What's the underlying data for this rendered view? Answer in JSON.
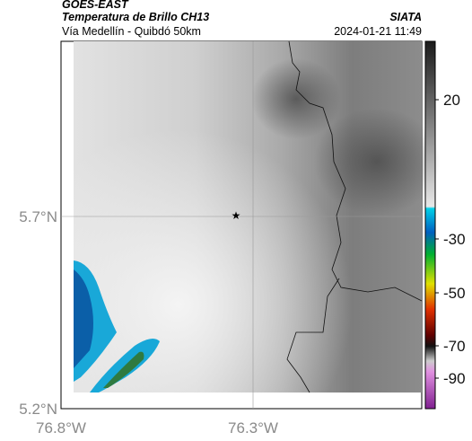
{
  "header": {
    "satellite": "GOES-EAST",
    "product": "Temperatura de Brillo CH13",
    "source": "SIATA",
    "route": "Vía Medellín - Quibdó 50km",
    "timestamp": "2024-01-21 11:49"
  },
  "axes": {
    "lat_labels": [
      "5.7°N",
      "5.2°N"
    ],
    "lon_labels": [
      "76.8°W",
      "76.3°W"
    ]
  },
  "colorbar": {
    "ticks": [
      20,
      -30,
      -50,
      -70,
      -90
    ]
  }
}
